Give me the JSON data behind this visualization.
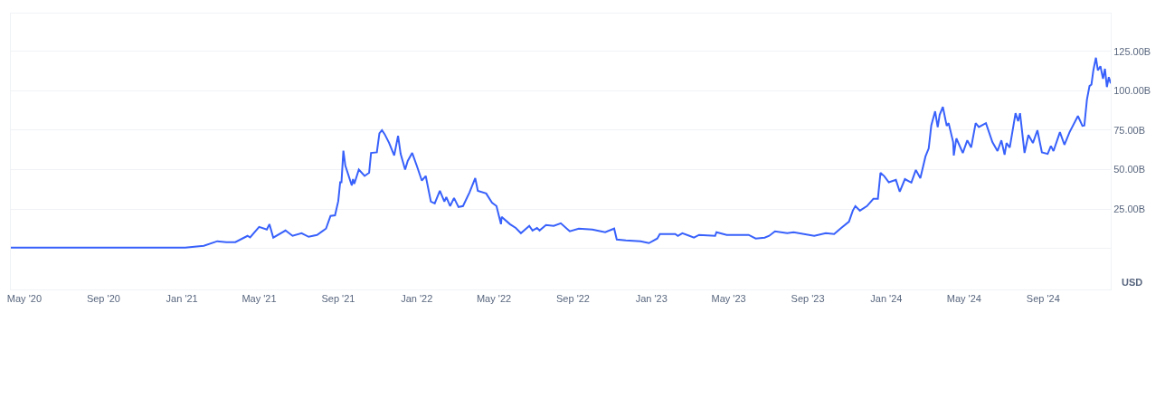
{
  "chart_data": {
    "type": "line",
    "x": [
      "2020-04-10",
      "2021-01-06",
      "2021-02-04",
      "2021-02-25",
      "2021-03-11",
      "2021-03-25",
      "2021-04-13",
      "2021-04-17",
      "2021-05-01",
      "2021-05-13",
      "2021-05-17",
      "2021-05-23",
      "2021-06-11",
      "2021-06-22",
      "2021-07-06",
      "2021-07-17",
      "2021-07-30",
      "2021-08-13",
      "2021-08-20",
      "2021-08-27",
      "2021-09-01",
      "2021-09-04",
      "2021-09-06",
      "2021-09-09",
      "2021-09-12",
      "2021-09-22",
      "2021-09-24",
      "2021-09-26",
      "2021-10-03",
      "2021-10-12",
      "2021-10-19",
      "2021-10-22",
      "2021-10-31",
      "2021-11-04",
      "2021-11-08",
      "2021-11-12",
      "2021-11-19",
      "2021-11-27",
      "2021-12-03",
      "2021-12-07",
      "2021-12-14",
      "2021-12-18",
      "2021-12-25",
      "2022-01-01",
      "2022-01-09",
      "2022-01-15",
      "2022-01-23",
      "2022-01-29",
      "2022-02-06",
      "2022-02-13",
      "2022-02-16",
      "2022-02-22",
      "2022-02-28",
      "2022-03-07",
      "2022-03-14",
      "2022-03-24",
      "2022-04-02",
      "2022-04-06",
      "2022-04-19",
      "2022-04-28",
      "2022-05-05",
      "2022-05-12",
      "2022-05-13",
      "2022-05-26",
      "2022-06-04",
      "2022-06-12",
      "2022-06-25",
      "2022-06-30",
      "2022-07-07",
      "2022-07-11",
      "2022-07-21",
      "2022-08-02",
      "2022-08-13",
      "2022-08-27",
      "2022-09-10",
      "2022-10-01",
      "2022-10-21",
      "2022-11-04",
      "2022-11-08",
      "2022-11-22",
      "2022-12-15",
      "2022-12-28",
      "2023-01-10",
      "2023-01-14",
      "2023-02-07",
      "2023-02-11",
      "2023-02-18",
      "2023-03-08",
      "2023-03-16",
      "2023-04-10",
      "2023-04-12",
      "2023-04-28",
      "2023-06-01",
      "2023-06-12",
      "2023-06-26",
      "2023-07-03",
      "2023-07-12",
      "2023-07-31",
      "2023-08-10",
      "2023-09-11",
      "2023-09-29",
      "2023-10-12",
      "2023-10-23",
      "2023-11-04",
      "2023-11-10",
      "2023-11-14",
      "2023-11-21",
      "2023-12-02",
      "2023-12-12",
      "2023-12-19",
      "2023-12-23",
      "2023-12-29",
      "2024-01-05",
      "2024-01-16",
      "2024-01-22",
      "2024-01-30",
      "2024-02-09",
      "2024-02-16",
      "2024-02-23",
      "2024-03-02",
      "2024-03-07",
      "2024-03-11",
      "2024-03-17",
      "2024-03-21",
      "2024-03-24",
      "2024-03-29",
      "2024-04-04",
      "2024-04-07",
      "2024-04-14",
      "2024-04-15",
      "2024-04-19",
      "2024-04-29",
      "2024-05-06",
      "2024-05-12",
      "2024-05-19",
      "2024-05-24",
      "2024-06-04",
      "2024-06-14",
      "2024-06-22",
      "2024-06-28",
      "2024-07-03",
      "2024-07-06",
      "2024-07-11",
      "2024-07-20",
      "2024-07-24",
      "2024-07-27",
      "2024-08-03",
      "2024-08-09",
      "2024-08-16",
      "2024-08-23",
      "2024-08-30",
      "2024-09-08",
      "2024-09-13",
      "2024-09-17",
      "2024-09-27",
      "2024-10-04",
      "2024-10-12",
      "2024-10-25",
      "2024-11-01",
      "2024-11-04",
      "2024-11-08",
      "2024-11-12",
      "2024-11-15",
      "2024-11-18",
      "2024-11-22",
      "2024-11-25",
      "2024-11-29",
      "2024-12-03",
      "2024-12-06",
      "2024-12-09",
      "2024-12-12",
      "2024-12-15"
    ],
    "series": [
      {
        "color": "#3861fb",
        "values": [
          0.5,
          0.5,
          1.7,
          4.6,
          4,
          4,
          8,
          7,
          13.7,
          12,
          15.4,
          6.9,
          11.4,
          8,
          9.7,
          7.4,
          8.6,
          12.6,
          20.6,
          21,
          30,
          42,
          42,
          62,
          52.6,
          40,
          44,
          41,
          50,
          46,
          48,
          60.6,
          61,
          73,
          75,
          72.6,
          67,
          59,
          71.5,
          60,
          50,
          55.5,
          60.6,
          52.6,
          43,
          46,
          29.7,
          28.6,
          36.6,
          29.7,
          32.6,
          26.9,
          32,
          26.3,
          26.9,
          35.5,
          44.6,
          36.6,
          34.9,
          29,
          26.9,
          15.4,
          20,
          15.4,
          13,
          9.7,
          14.3,
          11.4,
          13,
          11.4,
          14.9,
          14.3,
          16,
          10.9,
          12.6,
          12,
          10.3,
          12.6,
          5.7,
          5.1,
          4.6,
          3.4,
          6.3,
          9.2,
          9.2,
          8,
          9.7,
          6.9,
          8.6,
          8,
          10.3,
          8.6,
          8.6,
          6.3,
          6.9,
          8,
          10.9,
          9.7,
          10.3,
          8,
          9.7,
          9.2,
          13,
          17,
          24,
          26.9,
          24,
          26.9,
          31.5,
          31.5,
          48,
          45.8,
          42,
          43.5,
          36,
          44,
          41.8,
          49.8,
          44.6,
          58.4,
          63.5,
          78,
          87,
          77,
          84.7,
          89.8,
          77.8,
          79.5,
          67.5,
          59,
          69.8,
          60.6,
          68.6,
          64,
          79.5,
          77,
          79.5,
          67.5,
          61.8,
          68.6,
          59.5,
          66.9,
          64,
          85.8,
          80.7,
          85.8,
          60.6,
          72,
          66.9,
          75,
          61,
          60,
          65,
          61.8,
          73.8,
          65.8,
          73.8,
          84,
          77.8,
          78,
          94.4,
          103,
          104,
          113,
          121,
          113,
          115.6,
          107.6,
          114,
          102.4,
          108.7,
          104.7
        ]
      }
    ],
    "xlim": [
      "2020-04-10",
      "2024-12-15"
    ],
    "xticks": [
      {
        "value": "2020-05-01",
        "label": "May '20"
      },
      {
        "value": "2020-09-01",
        "label": "Sep '20"
      },
      {
        "value": "2021-01-01",
        "label": "Jan '21"
      },
      {
        "value": "2021-05-01",
        "label": "May '21"
      },
      {
        "value": "2021-09-01",
        "label": "Sep '21"
      },
      {
        "value": "2022-01-01",
        "label": "Jan '22"
      },
      {
        "value": "2022-05-01",
        "label": "May '22"
      },
      {
        "value": "2022-09-01",
        "label": "Sep '22"
      },
      {
        "value": "2023-01-01",
        "label": "Jan '23"
      },
      {
        "value": "2023-05-01",
        "label": "May '23"
      },
      {
        "value": "2023-09-01",
        "label": "Sep '23"
      },
      {
        "value": "2024-01-01",
        "label": "Jan '24"
      },
      {
        "value": "2024-05-01",
        "label": "May '24"
      },
      {
        "value": "2024-09-01",
        "label": "Sep '24"
      }
    ],
    "ylim": [
      -26,
      149
    ],
    "yticks": [
      {
        "value": 0,
        "label": null
      },
      {
        "value": 25,
        "label": "25.00B"
      },
      {
        "value": 50,
        "label": "50.00B"
      },
      {
        "value": 75,
        "label": "75.00B"
      },
      {
        "value": 100,
        "label": "100.00B"
      },
      {
        "value": 125,
        "label": "125.00B"
      }
    ],
    "annotations": [
      "USD"
    ],
    "grid": "y",
    "marker": "none",
    "line_style": "solid"
  }
}
